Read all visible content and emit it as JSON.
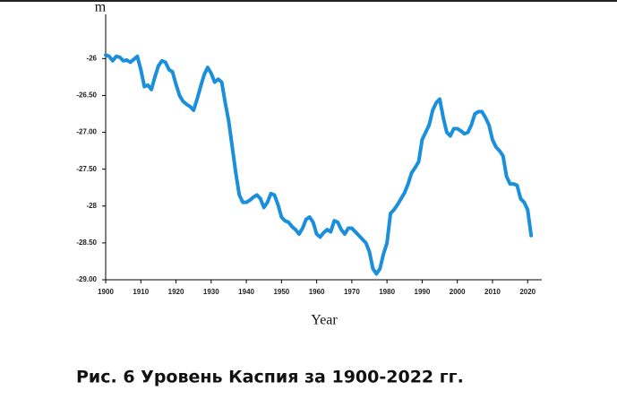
{
  "chart_data": {
    "type": "line",
    "caption": "Рис. 6 Уровень Каспия за 1900-2022 гг.",
    "y_label": "m",
    "x_label": "Year",
    "color": "#1b8fdc",
    "grid": false,
    "xlim": [
      1900,
      2023
    ],
    "xticks": [
      1900,
      1910,
      1920,
      1930,
      1940,
      1950,
      1960,
      1970,
      1980,
      1990,
      2000,
      2010,
      2020
    ],
    "ylim": [
      -29,
      -25.4
    ],
    "yticks": [
      -26,
      {
        "value": -26.5,
        "label": "-26.50"
      },
      {
        "value": -27,
        "label": "-27.00"
      },
      {
        "value": -27.5,
        "label": "-27.50"
      },
      -28,
      {
        "value": -28.5,
        "label": "-28.50"
      },
      {
        "value": -29,
        "label": "-29.00"
      }
    ],
    "x": [
      1900,
      1901,
      1902,
      1903,
      1904,
      1905,
      1906,
      1907,
      1908,
      1909,
      1910,
      1911,
      1912,
      1913,
      1914,
      1915,
      1916,
      1917,
      1918,
      1919,
      1920,
      1921,
      1922,
      1923,
      1924,
      1925,
      1926,
      1927,
      1928,
      1929,
      1930,
      1931,
      1932,
      1933,
      1934,
      1935,
      1936,
      1937,
      1938,
      1939,
      1940,
      1941,
      1942,
      1943,
      1944,
      1945,
      1946,
      1947,
      1948,
      1949,
      1950,
      1951,
      1952,
      1953,
      1954,
      1955,
      1956,
      1957,
      1958,
      1959,
      1960,
      1961,
      1962,
      1963,
      1964,
      1965,
      1966,
      1967,
      1968,
      1969,
      1970,
      1971,
      1972,
      1973,
      1974,
      1975,
      1976,
      1977,
      1978,
      1979,
      1980,
      1981,
      1982,
      1983,
      1984,
      1985,
      1986,
      1987,
      1988,
      1989,
      1990,
      1991,
      1992,
      1993,
      1994,
      1995,
      1996,
      1997,
      1998,
      1999,
      2000,
      2001,
      2002,
      2003,
      2004,
      2005,
      2006,
      2007,
      2008,
      2009,
      2010,
      2011,
      2012,
      2013,
      2014,
      2015,
      2016,
      2017,
      2018,
      2019,
      2020,
      2021
    ],
    "values": [
      -25.95,
      -25.97,
      -26.03,
      -25.97,
      -25.98,
      -26.03,
      -26.02,
      -26.05,
      -26.01,
      -25.97,
      -26.15,
      -26.38,
      -26.36,
      -26.42,
      -26.25,
      -26.1,
      -26.03,
      -26.05,
      -26.15,
      -26.18,
      -26.35,
      -26.5,
      -26.58,
      -26.62,
      -26.65,
      -26.7,
      -26.55,
      -26.38,
      -26.22,
      -26.12,
      -26.2,
      -26.32,
      -26.28,
      -26.32,
      -26.6,
      -26.85,
      -27.2,
      -27.55,
      -27.85,
      -27.95,
      -27.95,
      -27.92,
      -27.88,
      -27.85,
      -27.9,
      -28.02,
      -27.95,
      -27.83,
      -27.85,
      -27.98,
      -28.15,
      -28.2,
      -28.22,
      -28.28,
      -28.32,
      -28.38,
      -28.3,
      -28.18,
      -28.15,
      -28.22,
      -28.38,
      -28.42,
      -28.36,
      -28.32,
      -28.35,
      -28.2,
      -28.22,
      -28.32,
      -28.38,
      -28.3,
      -28.3,
      -28.35,
      -28.4,
      -28.45,
      -28.5,
      -28.62,
      -28.85,
      -28.92,
      -28.85,
      -28.65,
      -28.5,
      -28.1,
      -28.05,
      -27.98,
      -27.9,
      -27.82,
      -27.7,
      -27.55,
      -27.48,
      -27.4,
      -27.1,
      -27.0,
      -26.9,
      -26.7,
      -26.6,
      -26.55,
      -26.8,
      -27.0,
      -27.05,
      -26.95,
      -26.95,
      -26.98,
      -27.02,
      -27.0,
      -26.9,
      -26.75,
      -26.72,
      -26.72,
      -26.8,
      -26.9,
      -27.1,
      -27.2,
      -27.25,
      -27.32,
      -27.6,
      -27.7,
      -27.7,
      -27.72,
      -27.9,
      -27.95,
      -28.05,
      -28.4
    ]
  }
}
